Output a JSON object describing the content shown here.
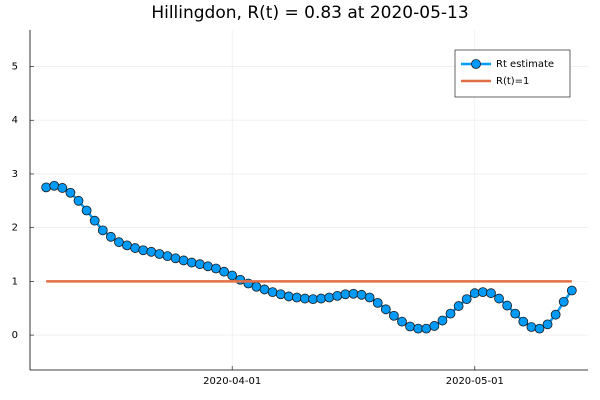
{
  "chart_data": {
    "type": "line",
    "title": "Hillingdon, R(t) = 0.83 at 2020-05-13",
    "x": [
      "2020-03-09",
      "2020-03-10",
      "2020-03-11",
      "2020-03-12",
      "2020-03-13",
      "2020-03-14",
      "2020-03-15",
      "2020-03-16",
      "2020-03-17",
      "2020-03-18",
      "2020-03-19",
      "2020-03-20",
      "2020-03-21",
      "2020-03-22",
      "2020-03-23",
      "2020-03-24",
      "2020-03-25",
      "2020-03-26",
      "2020-03-27",
      "2020-03-28",
      "2020-03-29",
      "2020-03-30",
      "2020-03-31",
      "2020-04-01",
      "2020-04-02",
      "2020-04-03",
      "2020-04-04",
      "2020-04-05",
      "2020-04-06",
      "2020-04-07",
      "2020-04-08",
      "2020-04-09",
      "2020-04-10",
      "2020-04-11",
      "2020-04-12",
      "2020-04-13",
      "2020-04-14",
      "2020-04-15",
      "2020-04-16",
      "2020-04-17",
      "2020-04-18",
      "2020-04-19",
      "2020-04-20",
      "2020-04-21",
      "2020-04-22",
      "2020-04-23",
      "2020-04-24",
      "2020-04-25",
      "2020-04-26",
      "2020-04-27",
      "2020-04-28",
      "2020-04-29",
      "2020-04-30",
      "2020-05-01",
      "2020-05-02",
      "2020-05-03",
      "2020-05-04",
      "2020-05-05",
      "2020-05-06",
      "2020-05-07",
      "2020-05-08",
      "2020-05-09",
      "2020-05-10",
      "2020-05-11",
      "2020-05-12",
      "2020-05-13"
    ],
    "series": [
      {
        "name": "Rt estimate",
        "color": "#009af9",
        "markers": true,
        "values": [
          2.75,
          2.78,
          2.74,
          2.65,
          2.5,
          2.32,
          2.13,
          1.95,
          1.83,
          1.73,
          1.67,
          1.62,
          1.58,
          1.55,
          1.51,
          1.47,
          1.43,
          1.39,
          1.35,
          1.32,
          1.28,
          1.24,
          1.18,
          1.11,
          1.03,
          0.96,
          0.9,
          0.85,
          0.8,
          0.76,
          0.72,
          0.7,
          0.68,
          0.67,
          0.68,
          0.7,
          0.73,
          0.76,
          0.77,
          0.75,
          0.7,
          0.6,
          0.48,
          0.36,
          0.25,
          0.16,
          0.12,
          0.12,
          0.17,
          0.27,
          0.4,
          0.54,
          0.67,
          0.78,
          0.8,
          0.78,
          0.68,
          0.55,
          0.4,
          0.25,
          0.15,
          0.12,
          0.2,
          0.38,
          0.62,
          0.83
        ]
      },
      {
        "name": "R(t)=1",
        "color": "#e26f46",
        "markers": false,
        "x": [
          "2020-03-09",
          "2020-05-13"
        ],
        "values": [
          1,
          1
        ]
      }
    ],
    "xlim": [
      "2020-03-07",
      "2020-05-15"
    ],
    "xticks": [
      "2020-04-01",
      "2020-05-01"
    ],
    "ylim": [
      -0.65,
      5.68
    ],
    "yticks": [
      0,
      1,
      2,
      3,
      4,
      5
    ],
    "grid": true,
    "legend": "upper-right"
  }
}
